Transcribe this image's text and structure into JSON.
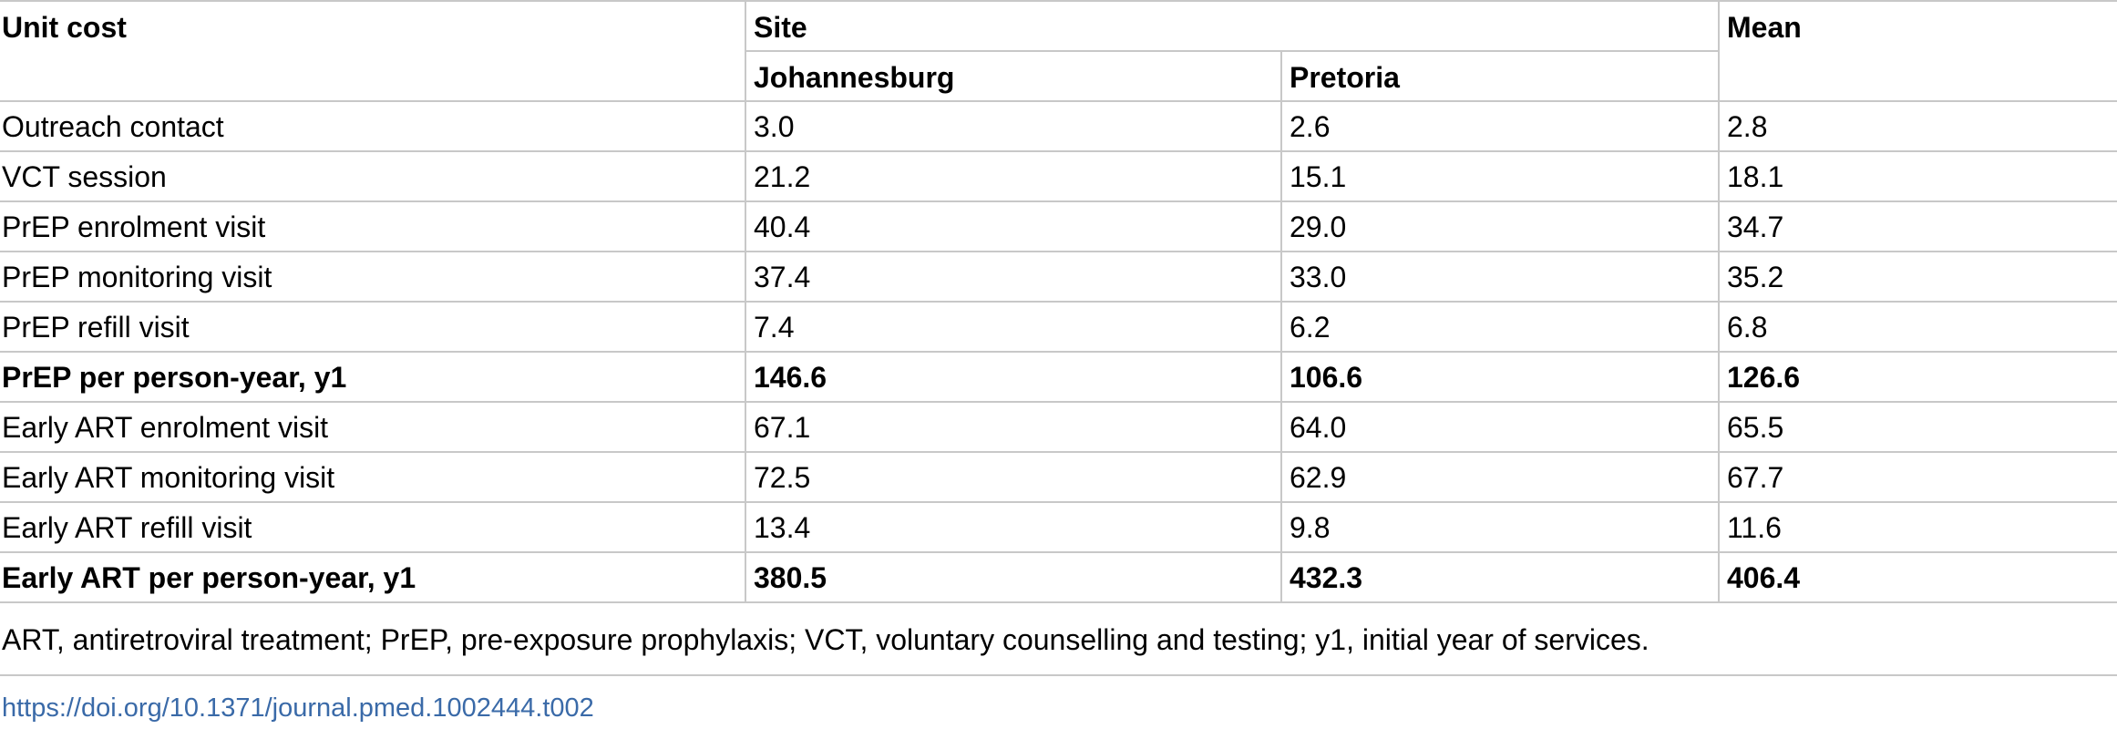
{
  "table": {
    "header": {
      "unit_cost": "Unit cost",
      "site": "Site",
      "mean": "Mean",
      "johannesburg": "Johannesburg",
      "pretoria": "Pretoria"
    },
    "rows": [
      {
        "label": "Outreach contact",
        "johannesburg": "3.0",
        "pretoria": "2.6",
        "mean": "2.8",
        "bold": false
      },
      {
        "label": "VCT session",
        "johannesburg": "21.2",
        "pretoria": "15.1",
        "mean": "18.1",
        "bold": false
      },
      {
        "label": "PrEP enrolment visit",
        "johannesburg": "40.4",
        "pretoria": "29.0",
        "mean": "34.7",
        "bold": false
      },
      {
        "label": "PrEP monitoring visit",
        "johannesburg": "37.4",
        "pretoria": "33.0",
        "mean": "35.2",
        "bold": false
      },
      {
        "label": "PrEP refill visit",
        "johannesburg": "7.4",
        "pretoria": "6.2",
        "mean": "6.8",
        "bold": false
      },
      {
        "label": "PrEP per person-year, y1",
        "johannesburg": "146.6",
        "pretoria": "106.6",
        "mean": "126.6",
        "bold": true
      },
      {
        "label": "Early ART enrolment visit",
        "johannesburg": "67.1",
        "pretoria": "64.0",
        "mean": "65.5",
        "bold": false
      },
      {
        "label": "Early ART monitoring visit",
        "johannesburg": "72.5",
        "pretoria": "62.9",
        "mean": "67.7",
        "bold": false
      },
      {
        "label": "Early ART refill visit",
        "johannesburg": "13.4",
        "pretoria": "9.8",
        "mean": "11.6",
        "bold": false
      },
      {
        "label": "Early ART per person-year, y1",
        "johannesburg": "380.5",
        "pretoria": "432.3",
        "mean": "406.4",
        "bold": true
      }
    ]
  },
  "footnote": "ART, antiretroviral treatment; PrEP, pre-exposure prophylaxis; VCT, voluntary counselling and testing; y1, initial year of services.",
  "doi_link": "https://doi.org/10.1371/journal.pmed.1002444.t002"
}
